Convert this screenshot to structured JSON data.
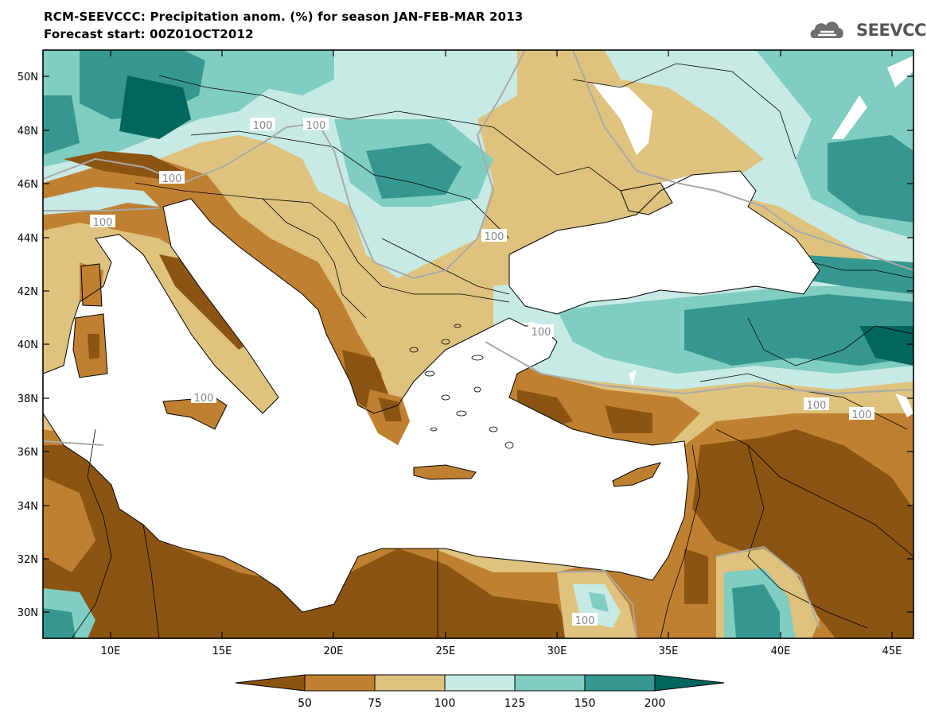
{
  "header": {
    "title": "RCM-SEEVCCC: Precipitation anom. (%) for season JAN-FEB-MAR 2013",
    "subtitle": "Forecast start: 00Z01OCT2012",
    "logo_text": "SEEVCCC",
    "logo_icon": "cloud-icon"
  },
  "map": {
    "lat_labels": [
      "50N",
      "48N",
      "46N",
      "44N",
      "42N",
      "40N",
      "38N",
      "36N",
      "34N",
      "32N",
      "30N"
    ],
    "lon_labels": [
      "10E",
      "15E",
      "20E",
      "25E",
      "30E",
      "35E",
      "40E",
      "45E"
    ],
    "contour_labels": [
      "100",
      "100",
      "100",
      "100",
      "100",
      "100",
      "100",
      "100",
      "100",
      "100"
    ],
    "colors": {
      "lt50": "#8c5412",
      "50_75": "#bf8131",
      "75_100": "#dfc27d",
      "100_125": "#c7eae5",
      "125_150": "#80cdc1",
      "150_200": "#35978f",
      "gt200": "#01665e",
      "sea": "#ffffff"
    }
  },
  "colorbar": {
    "labels": [
      "50",
      "75",
      "100",
      "125",
      "150",
      "200"
    ],
    "colors": [
      "#8c5412",
      "#bf8131",
      "#dfc27d",
      "#c7eae5",
      "#80cdc1",
      "#35978f",
      "#01665e"
    ]
  }
}
